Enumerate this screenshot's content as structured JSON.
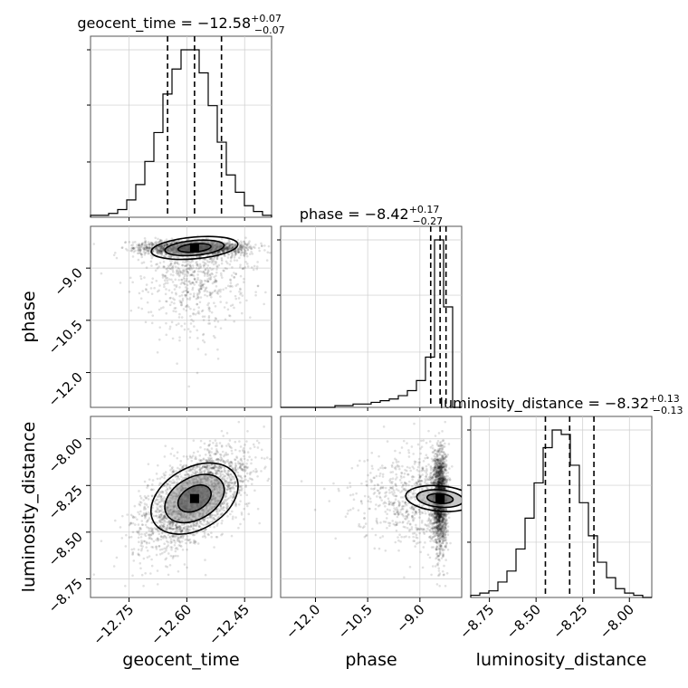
{
  "chart_data": {
    "type": "corner",
    "parameters": [
      {
        "key": "geocent_time",
        "label": "geocent_time",
        "range": [
          -12.85,
          -12.38
        ],
        "ticks": [
          -12.75,
          -12.6,
          -12.45
        ],
        "tick_labels": [
          "−12.75",
          "−12.60",
          "−12.45"
        ],
        "median": -12.58,
        "err_plus": 0.07,
        "err_minus": 0.07,
        "title": {
          "prefix": "geocent_time = ",
          "value": "−12.58",
          "plus": "+0.07",
          "minus": "−0.07"
        },
        "quantiles": [
          -12.65,
          -12.58,
          -12.51
        ],
        "hist": {
          "edges_start": -12.85,
          "bin_width": 0.0235,
          "counts": [
            1,
            1,
            2,
            4,
            9,
            17,
            29,
            44,
            64,
            77,
            87,
            87,
            75,
            58,
            39,
            22,
            13,
            6,
            3,
            1
          ]
        }
      },
      {
        "key": "phase",
        "label": "phase",
        "range": [
          -13.0,
          -7.8
        ],
        "ticks": [
          -12.0,
          -10.5,
          -9.0
        ],
        "tick_labels": [
          "−12.0",
          "−10.5",
          "−9.0"
        ],
        "median": -8.42,
        "err_plus": 0.17,
        "err_minus": 0.27,
        "title": {
          "prefix": "phase = ",
          "value": "−8.42",
          "plus": "+0.17",
          "minus": "−0.27"
        },
        "quantiles": [
          -8.69,
          -8.42,
          -8.25
        ],
        "hist": {
          "edges_start": -13.0,
          "bin_width": 0.26,
          "counts": [
            0,
            0,
            0,
            0,
            0,
            0,
            1,
            1,
            2,
            2,
            3,
            4,
            5,
            7,
            10,
            16,
            30,
            100,
            60,
            0
          ]
        }
      },
      {
        "key": "luminosity_distance",
        "label": "luminosity_distance",
        "range": [
          -8.85,
          -7.88
        ],
        "ticks": [
          -8.75,
          -8.5,
          -8.25,
          -8.0
        ],
        "tick_labels": [
          "−8.75",
          "−8.50",
          "−8.25",
          "−8.00"
        ],
        "median": -8.32,
        "err_plus": 0.13,
        "err_minus": 0.13,
        "title": {
          "prefix": "luminosity_distance = ",
          "value": "−8.32",
          "plus": "+0.13",
          "minus": "−0.13"
        },
        "quantiles": [
          -8.45,
          -8.32,
          -8.19
        ],
        "hist": {
          "edges_start": -8.85,
          "bin_width": 0.0485,
          "counts": [
            1,
            2,
            3,
            7,
            12,
            22,
            36,
            52,
            68,
            76,
            74,
            60,
            43,
            28,
            16,
            9,
            4,
            2,
            1,
            0
          ]
        }
      }
    ],
    "scatter_seed": 7,
    "scatter_points": 2600,
    "contour_levels": [
      "inner",
      "middle",
      "outer"
    ],
    "grid": true
  }
}
